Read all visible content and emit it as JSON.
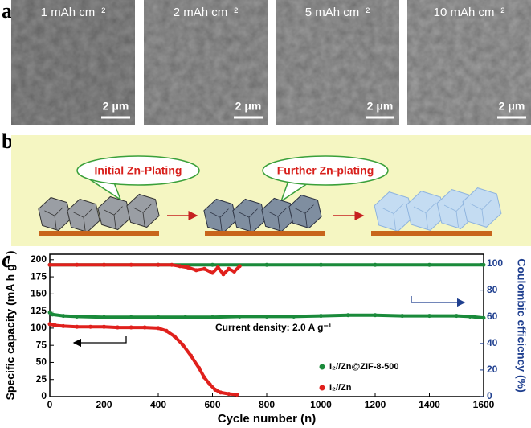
{
  "panel_a": {
    "label": "a",
    "images": [
      {
        "label": "1 mAh cm⁻²",
        "scale": "2 μm"
      },
      {
        "label": "2 mAh cm⁻²",
        "scale": "2 μm"
      },
      {
        "label": "5 mAh cm⁻²",
        "scale": "2 μm"
      },
      {
        "label": "10 mAh cm⁻²",
        "scale": "2 μm"
      }
    ]
  },
  "panel_b": {
    "label": "b",
    "bubbles": [
      "Initial Zn-Plating",
      "Further Zn-plating"
    ]
  },
  "panel_c": {
    "label": "c"
  },
  "chart_data": {
    "type": "scatter",
    "xlabel": "Cycle number (n)",
    "ylabel": "Specific capacity (mA h g⁻¹)",
    "y2label": "Coulombic efficiency (%)",
    "annotation": "Current density: 2.0 A g⁻¹",
    "xlim": [
      0,
      1600
    ],
    "xticks": [
      0,
      200,
      400,
      600,
      800,
      1000,
      1200,
      1400,
      1600
    ],
    "ylim": [
      0,
      208
    ],
    "yticks": [
      0,
      25,
      50,
      75,
      100,
      125,
      150,
      175,
      200
    ],
    "y2lim": [
      0,
      107
    ],
    "y2ticks": [
      0,
      20,
      40,
      60,
      80,
      100
    ],
    "series": [
      {
        "name": "I₂//Zn@ZIF-8-500",
        "color": "#1a8a3a",
        "x": [
          0,
          10,
          50,
          100,
          200,
          300,
          400,
          500,
          600,
          700,
          800,
          900,
          1000,
          1100,
          1200,
          1300,
          1400,
          1500,
          1550,
          1600
        ],
        "values": [
          123,
          120,
          118,
          117,
          116,
          116,
          116,
          116,
          116,
          117,
          117,
          117,
          118,
          119,
          119,
          118,
          118,
          118,
          117,
          115
        ]
      },
      {
        "name": "I₂//Zn",
        "color": "#e0201c",
        "x": [
          0,
          20,
          50,
          100,
          150,
          200,
          250,
          300,
          350,
          400,
          430,
          460,
          490,
          520,
          550,
          570,
          590,
          610,
          630,
          660,
          690
        ],
        "values": [
          106,
          104,
          103,
          102,
          102,
          102,
          101,
          101,
          101,
          100,
          96,
          88,
          76,
          60,
          42,
          28,
          18,
          10,
          6,
          4,
          3
        ]
      },
      {
        "name": "I₂//Zn@ZIF-8-500",
        "color": "#1a8a3a",
        "axis": "y2",
        "x": [
          0,
          200,
          400,
          600,
          800,
          1000,
          1200,
          1400,
          1600
        ],
        "values": [
          99,
          99,
          99,
          99,
          99,
          99,
          99,
          99,
          99
        ]
      },
      {
        "name": "I₂//Zn",
        "color": "#e0201c",
        "axis": "y2",
        "x": [
          0,
          100,
          200,
          300,
          400,
          450,
          480,
          510,
          540,
          570,
          600,
          620,
          640,
          660,
          680,
          700
        ],
        "values": [
          99,
          99,
          99,
          99,
          99,
          99,
          98,
          97,
          95,
          96,
          93,
          97,
          92,
          96,
          94,
          98
        ]
      }
    ]
  }
}
